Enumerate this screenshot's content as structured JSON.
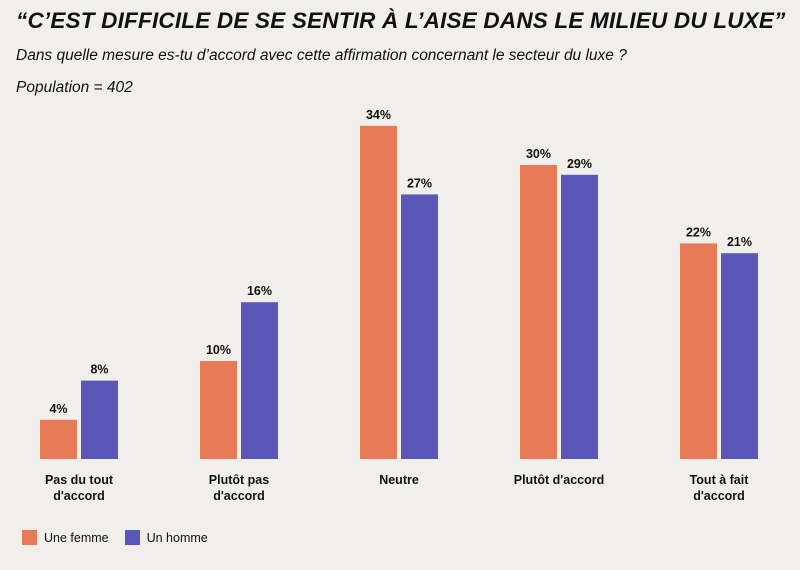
{
  "title": "“C’EST DIFFICILE DE SE SENTIR À L’AISE DANS LE MILIEU DU LUXE”",
  "subtitle": "Dans quelle mesure es-tu d’accord avec cette affirmation concernant le secteur du luxe ?",
  "population": "Population = 402",
  "colors": {
    "femme": "#e87b57",
    "homme": "#5a57b8",
    "background": "#f1efec"
  },
  "chart_data": {
    "type": "bar",
    "categories": [
      [
        "Pas du tout",
        "d'accord"
      ],
      [
        "Plutôt pas",
        "d'accord"
      ],
      [
        "Neutre"
      ],
      [
        "Plutôt d'accord"
      ],
      [
        "Tout à fait",
        "d'accord"
      ]
    ],
    "series": [
      {
        "name": "Une femme",
        "values": [
          4,
          10,
          34,
          30,
          22
        ],
        "labels": [
          "4%",
          "10%",
          "34%",
          "30%",
          "22%"
        ],
        "color": "#e87b57"
      },
      {
        "name": "Un homme",
        "values": [
          8,
          16,
          27,
          29,
          21
        ],
        "labels": [
          "8%",
          "16%",
          "27%",
          "29%",
          "21%"
        ],
        "color": "#5a57b8"
      }
    ],
    "unit": "%",
    "legend_position": "bottom-left",
    "grid": false
  }
}
